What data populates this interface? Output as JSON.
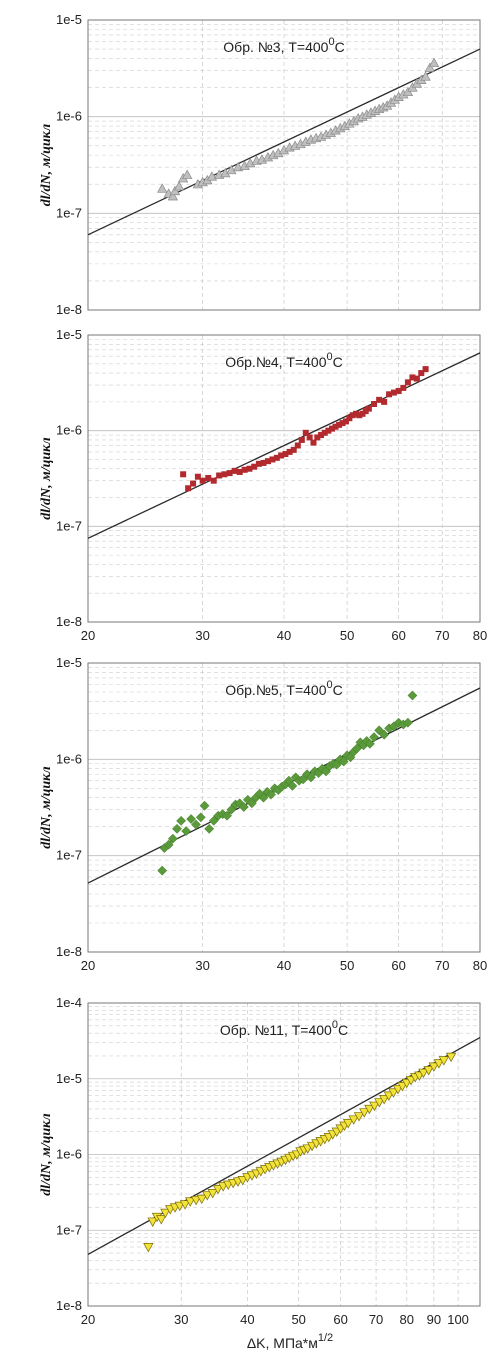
{
  "x_axis_title": "ΔK, МПа*м",
  "x_axis_title_sup": "1/2",
  "chart_data": [
    {
      "type": "scatter",
      "annotation": "Обр. №3, T=400",
      "annotation_sup": "0",
      "annotation_suffix": "C",
      "ylabel": "dl/dN, м/цикл",
      "xscale": "log",
      "yscale": "log",
      "xlim": [
        20,
        80
      ],
      "ylim": [
        1e-08,
        1e-05
      ],
      "xticks_shown": false,
      "yticks": [
        "1e-8",
        "1e-7",
        "1e-6",
        "1e-5"
      ],
      "grid": true,
      "marker": "triangle-up",
      "color": "#c0c0c0",
      "fit_line": {
        "x": [
          20,
          80
        ],
        "y": [
          6e-08,
          5e-06
        ]
      },
      "series": [
        {
          "x": [
            26.0,
            26.6,
            27.0,
            27.2,
            27.6,
            28.0,
            28.4,
            29.5,
            30.0,
            30.5,
            31.0,
            31.8,
            32.5,
            33.2,
            34.0,
            34.8,
            35.5,
            36.3,
            37.0,
            37.8,
            38.5,
            39.2,
            40.0,
            40.8,
            41.6,
            42.4,
            43.2,
            44.0,
            44.8,
            45.6,
            46.4,
            47.2,
            48.0,
            48.8,
            49.6,
            50.4,
            51.2,
            52.0,
            52.8,
            53.6,
            54.4,
            55.2,
            56.0,
            56.8,
            57.6,
            58.4,
            59.2,
            60.0,
            61.0,
            62.0,
            63.0,
            64.0,
            65.0,
            66.0,
            67.0,
            68.0
          ],
          "y": [
            1.8e-07,
            1.6e-07,
            1.5e-07,
            1.7e-07,
            1.9e-07,
            2.3e-07,
            2.5e-07,
            2e-07,
            2.1e-07,
            2.2e-07,
            2.4e-07,
            2.5e-07,
            2.6e-07,
            2.8e-07,
            3e-07,
            3.1e-07,
            3.3e-07,
            3.5e-07,
            3.6e-07,
            3.8e-07,
            4e-07,
            4.2e-07,
            4.5e-07,
            4.8e-07,
            5e-07,
            5.2e-07,
            5.5e-07,
            5.8e-07,
            6e-07,
            6.2e-07,
            6.5e-07,
            6.8e-07,
            7.2e-07,
            7.6e-07,
            8e-07,
            8.5e-07,
            9e-07,
            9.6e-07,
            1e-06,
            1.05e-06,
            1.1e-06,
            1.15e-06,
            1.2e-06,
            1.25e-06,
            1.3e-06,
            1.4e-06,
            1.5e-06,
            1.6e-06,
            1.7e-06,
            1.8e-06,
            2e-06,
            2.2e-06,
            2.4e-06,
            2.6e-06,
            3.2e-06,
            3.6e-06
          ]
        }
      ]
    },
    {
      "type": "scatter",
      "annotation": "Обр.№4, T=400",
      "annotation_sup": "0",
      "annotation_suffix": "C",
      "ylabel": "dl/dN, м/цикл",
      "xscale": "log",
      "yscale": "log",
      "xlim": [
        20,
        80
      ],
      "ylim": [
        1e-08,
        1e-05
      ],
      "xticks": [
        20,
        30,
        40,
        50,
        60,
        70,
        80
      ],
      "yticks": [
        "1e-8",
        "1e-7",
        "1e-6",
        "1e-5"
      ],
      "grid": true,
      "marker": "square",
      "color": "#b22a2e",
      "fit_line": {
        "x": [
          20,
          80
        ],
        "y": [
          7.5e-08,
          6.5e-06
        ]
      },
      "series": [
        {
          "x": [
            28.0,
            28.5,
            29.0,
            29.5,
            30.0,
            30.6,
            31.2,
            31.8,
            32.4,
            33.0,
            33.6,
            34.2,
            34.8,
            35.4,
            36.0,
            36.6,
            37.2,
            37.8,
            38.4,
            39.0,
            39.6,
            40.2,
            40.8,
            41.4,
            42.0,
            42.6,
            43.2,
            43.8,
            44.4,
            45.0,
            45.6,
            46.2,
            46.8,
            47.4,
            48.0,
            48.6,
            49.2,
            49.8,
            50.4,
            51.0,
            51.6,
            52.2,
            52.8,
            53.4,
            54.0,
            55.0,
            56.0,
            57.0,
            58.0,
            59.0,
            60.0,
            61.0,
            62.0,
            63.0,
            64.0,
            65.0,
            66.0
          ],
          "y": [
            3.5e-07,
            2.5e-07,
            2.8e-07,
            3.3e-07,
            3e-07,
            3.2e-07,
            3e-07,
            3.4e-07,
            3.5e-07,
            3.6e-07,
            3.8e-07,
            3.7e-07,
            3.9e-07,
            4e-07,
            4.2e-07,
            4.5e-07,
            4.6e-07,
            4.8e-07,
            5e-07,
            5.2e-07,
            5.5e-07,
            5.7e-07,
            6e-07,
            6.3e-07,
            7e-07,
            8e-07,
            9.5e-07,
            8.5e-07,
            7.5e-07,
            8.5e-07,
            9e-07,
            9.5e-07,
            1e-06,
            1.05e-06,
            1.1e-06,
            1.15e-06,
            1.2e-06,
            1.25e-06,
            1.35e-06,
            1.45e-06,
            1.5e-06,
            1.45e-06,
            1.5e-06,
            1.6e-06,
            1.7e-06,
            1.9e-06,
            2.1e-06,
            2e-06,
            2.4e-06,
            2.5e-06,
            2.6e-06,
            2.8e-06,
            3.2e-06,
            3.6e-06,
            3.5e-06,
            4e-06,
            4.4e-06
          ]
        }
      ]
    },
    {
      "type": "scatter",
      "annotation": "Обр.№5, T=400",
      "annotation_sup": "0",
      "annotation_suffix": "C",
      "ylabel": "dl/dN, м/цикл",
      "xscale": "log",
      "yscale": "log",
      "xlim": [
        20,
        80
      ],
      "ylim": [
        1e-08,
        1e-05
      ],
      "xticks": [
        20,
        30,
        40,
        50,
        60,
        70,
        80
      ],
      "yticks": [
        "1e-8",
        "1e-7",
        "1e-6",
        "1e-5"
      ],
      "grid": true,
      "marker": "diamond",
      "color": "#5a9a3a",
      "fit_line": {
        "x": [
          20,
          80
        ],
        "y": [
          5.2e-08,
          5.5e-06
        ]
      },
      "series": [
        {
          "x": [
            26.0,
            26.2,
            26.6,
            27.0,
            27.4,
            27.8,
            28.3,
            28.8,
            29.3,
            29.8,
            30.2,
            30.7,
            31.2,
            31.7,
            32.2,
            32.7,
            33.2,
            33.7,
            34.2,
            34.7,
            35.2,
            35.7,
            36.2,
            36.7,
            37.2,
            37.7,
            38.2,
            38.7,
            39.2,
            39.7,
            40.2,
            40.7,
            41.2,
            41.7,
            42.2,
            42.8,
            43.4,
            44.0,
            44.6,
            45.2,
            45.8,
            46.4,
            47.0,
            47.6,
            48.2,
            48.8,
            49.4,
            50.0,
            50.6,
            51.2,
            51.8,
            52.4,
            53.0,
            53.6,
            54.2,
            55.0,
            56.0,
            57.0,
            58.0,
            59.0,
            60.0,
            61.0,
            62.0,
            63.0
          ],
          "y": [
            7e-08,
            1.2e-07,
            1.3e-07,
            1.5e-07,
            1.9e-07,
            2.3e-07,
            1.8e-07,
            2.4e-07,
            2.1e-07,
            2.5e-07,
            3.3e-07,
            1.9e-07,
            2.3e-07,
            2.6e-07,
            2.7e-07,
            2.6e-07,
            3e-07,
            3.4e-07,
            3.5e-07,
            3.2e-07,
            3.8e-07,
            3.5e-07,
            4e-07,
            4.4e-07,
            4e-07,
            4.6e-07,
            4.3e-07,
            5e-07,
            4.8e-07,
            5.2e-07,
            5.5e-07,
            6e-07,
            5.3e-07,
            6.5e-07,
            6e-07,
            6.2e-07,
            7e-07,
            6.5e-07,
            7.5e-07,
            7.2e-07,
            8e-07,
            7.5e-07,
            8.5e-07,
            9e-07,
            8.8e-07,
            1e-06,
            9.5e-07,
            1.1e-06,
            1.05e-06,
            1.2e-06,
            1.3e-06,
            1.5e-06,
            1.4e-06,
            1.55e-06,
            1.45e-06,
            1.7e-06,
            2e-06,
            1.8e-06,
            2.1e-06,
            2.2e-06,
            2.4e-06,
            2.3e-06,
            2.4e-06,
            4.6e-06
          ]
        }
      ]
    },
    {
      "type": "scatter",
      "annotation": "Обр. №11, T=400",
      "annotation_sup": "0",
      "annotation_suffix": "C",
      "ylabel": "dl/dN, м/цикл",
      "xscale": "log",
      "yscale": "log",
      "xlim": [
        20,
        110
      ],
      "ylim": [
        1e-08,
        0.0001
      ],
      "xticks": [
        20,
        30,
        40,
        50,
        60,
        70,
        80,
        90,
        100
      ],
      "yticks": [
        "1e-8",
        "1e-7",
        "1e-6",
        "1e-5",
        "1e-4"
      ],
      "grid": true,
      "marker": "triangle-down",
      "color": "#f2e33a",
      "fit_line": {
        "x": [
          20,
          110
        ],
        "y": [
          4.8e-08,
          3.5e-05
        ]
      },
      "series": [
        {
          "x": [
            26.0,
            26.5,
            27.0,
            27.5,
            28.0,
            28.6,
            29.2,
            29.8,
            30.5,
            31.2,
            32.0,
            32.8,
            33.6,
            34.4,
            35.2,
            36.0,
            36.8,
            37.6,
            38.4,
            39.2,
            40.0,
            40.8,
            41.6,
            42.4,
            43.2,
            44.0,
            44.8,
            45.6,
            46.4,
            47.2,
            48.0,
            48.8,
            49.6,
            50.4,
            51.2,
            52.0,
            53.0,
            54.0,
            55.0,
            56.0,
            57.0,
            58.0,
            59.0,
            60.0,
            61.0,
            62.0,
            63.5,
            65.0,
            66.5,
            68.0,
            69.5,
            71.0,
            72.5,
            74.0,
            75.5,
            77.0,
            78.5,
            80.0,
            81.5,
            83.0,
            84.5,
            86.0,
            88.0,
            90.0,
            92.0,
            94.0,
            97.0
          ],
          "y": [
            6e-08,
            1.3e-07,
            1.5e-07,
            1.4e-07,
            1.7e-07,
            1.9e-07,
            2e-07,
            2.1e-07,
            2.2e-07,
            2.4e-07,
            2.5e-07,
            2.6e-07,
            2.9e-07,
            3.1e-07,
            3.5e-07,
            3.8e-07,
            4e-07,
            4.2e-07,
            4.4e-07,
            4.6e-07,
            5e-07,
            5.3e-07,
            5.6e-07,
            6e-07,
            6.4e-07,
            6.8e-07,
            7.2e-07,
            7.6e-07,
            8e-07,
            8.5e-07,
            9e-07,
            9.6e-07,
            1e-06,
            1.1e-06,
            1.15e-06,
            1.2e-06,
            1.3e-06,
            1.4e-06,
            1.5e-06,
            1.6e-06,
            1.7e-06,
            1.85e-06,
            2e-06,
            2.2e-06,
            2.4e-06,
            2.6e-06,
            2.9e-06,
            3.2e-06,
            3.6e-06,
            4e-06,
            4.4e-06,
            4.9e-06,
            5.4e-06,
            6e-06,
            6.6e-06,
            7.3e-06,
            8e-06,
            8.8e-06,
            9.6e-06,
            1.05e-05,
            1.1e-05,
            1.2e-05,
            1.3e-05,
            1.45e-05,
            1.6e-05,
            1.75e-05,
            1.95e-05
          ]
        }
      ]
    }
  ]
}
